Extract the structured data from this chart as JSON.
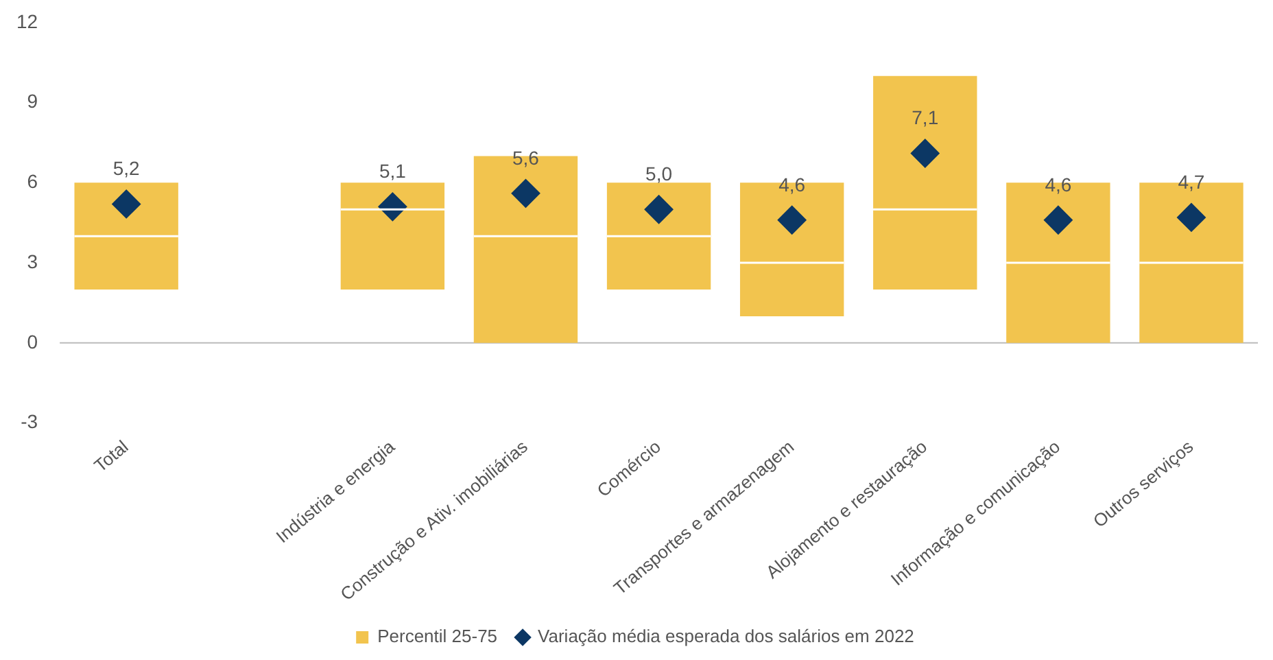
{
  "chart_data": {
    "type": "box",
    "categories": [
      "Total",
      null,
      "Indústria e energia",
      "Construção e Ativ. imobiliárias",
      "Comércio",
      "Transportes e armazenagem",
      "Alojamento e restauração",
      "Informação e comunicação",
      "Outros serviços"
    ],
    "series": [
      {
        "name": "Percentil 25-75",
        "color": "#f2c44e",
        "boxes": [
          {
            "low": 2,
            "q1": 2,
            "median": 4,
            "q3": 6,
            "high": 6
          },
          null,
          {
            "low": 2,
            "q1": 2,
            "median": 5,
            "q3": 6,
            "high": 6
          },
          {
            "low": 0,
            "q1": 0,
            "median": 4,
            "q3": 7,
            "high": 7
          },
          {
            "low": 2,
            "q1": 2,
            "median": 4,
            "q3": 6,
            "high": 6
          },
          {
            "low": 1,
            "q1": 1,
            "median": 3,
            "q3": 6,
            "high": 6
          },
          {
            "low": 2,
            "q1": 2,
            "median": 5,
            "q3": 10,
            "high": 10
          },
          {
            "low": 0,
            "q1": 0,
            "median": 3,
            "q3": 6,
            "high": 6
          },
          {
            "low": 0,
            "q1": 0,
            "median": 3,
            "q3": 6,
            "high": 6
          }
        ]
      },
      {
        "type": "scatter",
        "name": "Variação média esperada dos salários em 2022",
        "color": "#0c3764",
        "marker": "diamond",
        "x": [
          "Total",
          "Indústria e energia",
          "Construção e Ativ. imobiliárias",
          "Comércio",
          "Transportes e armazenagem",
          "Alojamento e restauração",
          "Informação e comunicação",
          "Outros serviços"
        ],
        "values": [
          5.2,
          5.1,
          5.6,
          5.0,
          4.6,
          7.1,
          4.6,
          4.7
        ],
        "value_labels": [
          "5,2",
          "5,1",
          "5,6",
          "5,0",
          "4,6",
          "7,1",
          "4,6",
          "4,7"
        ]
      }
    ],
    "ref_lines": [
      {
        "axis": "y",
        "value": 0,
        "color": "#bbbbbb"
      }
    ],
    "ylim": [
      -3,
      12
    ],
    "yticks": [
      -3,
      0,
      3,
      6,
      9,
      12
    ],
    "legend": "bottom"
  }
}
